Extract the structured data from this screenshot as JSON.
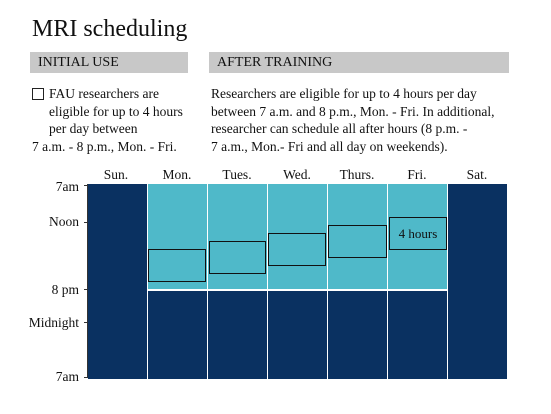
{
  "title": "MRI scheduling",
  "initial_use": {
    "header": "INITIAL USE",
    "lines": [
      "FAU researchers are",
      "eligible for up to 4 hours",
      "per day between",
      "7 a.m. - 8 p.m., Mon. - Fri."
    ]
  },
  "after_training": {
    "header": "AFTER TRAINING",
    "lines": [
      "Researchers are eligible for up to 4 hours per day",
      "between 7 a.m. and 8 p.m., Mon. - Fri. In additional,",
      "researcher can schedule all after hours (8 p.m. -",
      "7 a.m., Mon.- Fri and all day on weekends)."
    ]
  },
  "days": [
    "Sun.",
    "Mon.",
    "Tues.",
    "Wed.",
    "Thurs.",
    "Fri.",
    "Sat."
  ],
  "times": [
    "7am",
    "Noon",
    "8 pm",
    "Midnight",
    "7am"
  ],
  "block_label": "4 hours",
  "colors": {
    "dark_blue": "#0a3161",
    "light_blue": "#4fb9c9"
  }
}
